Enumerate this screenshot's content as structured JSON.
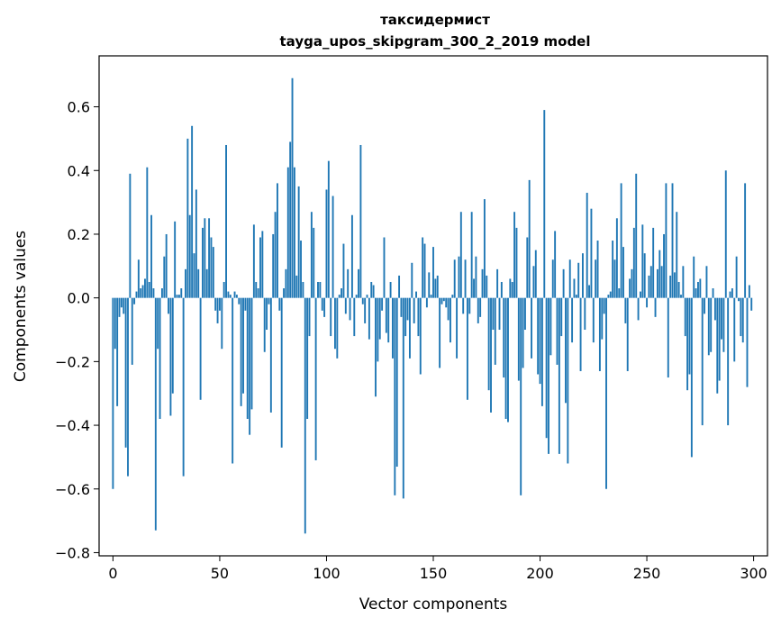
{
  "chart_data": {
    "type": "bar",
    "title": "таксидермист",
    "subtitle": "tayga_upos_skipgram_300_2_2019 model",
    "xlabel": "Vector components",
    "ylabel": "Components values",
    "xlim": [
      -6.5,
      306.5
    ],
    "ylim": [
      -0.81,
      0.76
    ],
    "xticks": [
      0,
      50,
      100,
      150,
      200,
      250,
      300
    ],
    "yticks": [
      -0.8,
      -0.6,
      -0.4,
      -0.2,
      0.0,
      0.2,
      0.4,
      0.6
    ],
    "ytick_labels": [
      "−0.8",
      "−0.6",
      "−0.4",
      "−0.2",
      "0.0",
      "0.2",
      "0.4",
      "0.6"
    ],
    "bar_color": "#1f77b4",
    "x": "0..299",
    "values": [
      -0.6,
      -0.16,
      -0.34,
      -0.06,
      -0.03,
      -0.05,
      -0.47,
      -0.56,
      0.39,
      -0.21,
      -0.02,
      0.02,
      0.12,
      0.03,
      0.04,
      0.06,
      0.41,
      0.05,
      0.26,
      0.03,
      -0.73,
      -0.16,
      -0.38,
      0.03,
      0.13,
      0.2,
      -0.05,
      -0.37,
      -0.3,
      0.24,
      0.01,
      0.01,
      0.03,
      -0.56,
      0.09,
      0.5,
      0.26,
      0.54,
      0.14,
      0.34,
      0.09,
      -0.32,
      0.22,
      0.25,
      0.09,
      0.25,
      0.19,
      0.16,
      -0.04,
      -0.08,
      -0.04,
      -0.16,
      0.05,
      0.48,
      0.02,
      0.01,
      -0.52,
      0.02,
      0.01,
      -0.02,
      -0.34,
      -0.3,
      -0.04,
      -0.38,
      -0.43,
      -0.35,
      0.23,
      0.05,
      0.03,
      0.19,
      0.21,
      -0.17,
      -0.1,
      -0.02,
      -0.36,
      0.2,
      0.27,
      0.36,
      -0.04,
      -0.47,
      0.03,
      0.09,
      0.41,
      0.49,
      0.69,
      0.41,
      0.07,
      0.35,
      0.18,
      0.05,
      -0.74,
      -0.38,
      -0.12,
      0.27,
      0.22,
      -0.51,
      0.05,
      0.05,
      -0.04,
      -0.06,
      0.34,
      0.43,
      -0.12,
      0.32,
      -0.16,
      -0.19,
      0.01,
      0.03,
      0.17,
      -0.05,
      0.09,
      -0.07,
      0.26,
      -0.12,
      0.01,
      0.09,
      0.48,
      -0.02,
      -0.08,
      0.01,
      -0.13,
      0.05,
      0.04,
      -0.31,
      -0.2,
      -0.13,
      -0.04,
      0.19,
      -0.11,
      -0.14,
      0.05,
      -0.19,
      -0.62,
      -0.53,
      0.07,
      -0.06,
      -0.63,
      -0.12,
      -0.07,
      -0.19,
      0.11,
      -0.08,
      0.02,
      -0.12,
      -0.24,
      0.19,
      0.17,
      -0.03,
      0.08,
      0.01,
      0.16,
      0.06,
      0.07,
      -0.22,
      -0.02,
      -0.01,
      -0.03,
      -0.07,
      -0.14,
      0.01,
      0.12,
      -0.19,
      0.13,
      0.27,
      -0.05,
      0.12,
      -0.32,
      -0.05,
      0.27,
      0.06,
      0.13,
      -0.08,
      -0.06,
      0.09,
      0.31,
      0.07,
      -0.29,
      -0.36,
      -0.1,
      -0.21,
      0.09,
      -0.1,
      0.05,
      -0.25,
      -0.38,
      -0.39,
      0.06,
      0.05,
      0.27,
      0.22,
      -0.26,
      -0.62,
      -0.22,
      -0.1,
      0.19,
      0.37,
      -0.19,
      0.1,
      0.15,
      -0.24,
      -0.27,
      -0.34,
      0.59,
      -0.44,
      -0.49,
      -0.18,
      0.12,
      0.21,
      -0.21,
      -0.49,
      -0.12,
      0.09,
      -0.33,
      -0.52,
      0.12,
      -0.14,
      0.06,
      0.01,
      0.11,
      -0.23,
      0.14,
      -0.1,
      0.33,
      0.04,
      0.28,
      -0.14,
      0.12,
      0.18,
      -0.23,
      -0.13,
      -0.05,
      -0.6,
      0.01,
      0.02,
      0.18,
      0.12,
      0.25,
      0.03,
      0.36,
      0.16,
      -0.08,
      -0.23,
      0.06,
      0.09,
      0.22,
      0.39,
      -0.07,
      0.02,
      0.23,
      0.14,
      -0.03,
      0.07,
      0.1,
      0.22,
      -0.06,
      0.09,
      0.15,
      0.1,
      0.2,
      0.36,
      -0.25,
      0.07,
      0.36,
      0.08,
      0.27,
      0.05,
      0.01,
      0.1,
      -0.12,
      -0.29,
      -0.24,
      -0.5,
      0.13,
      0.03,
      0.05,
      0.06,
      -0.4,
      -0.05,
      0.1,
      -0.18,
      -0.17,
      0.03,
      -0.07,
      -0.3,
      -0.26,
      -0.13,
      -0.17,
      0.4,
      -0.4,
      0.02,
      0.03,
      -0.2,
      0.13,
      -0.01,
      -0.12,
      -0.14,
      0.36,
      -0.28,
      0.04,
      -0.04
    ]
  }
}
